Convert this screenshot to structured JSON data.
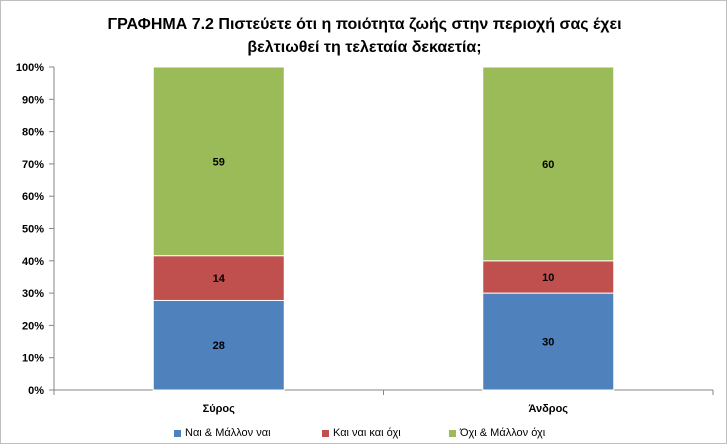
{
  "title_line1": "ΓΡΑΦΗΜΑ 7.2 Πιστεύετε ότι η ποιότητα ζωής στην περιοχή σας έχει",
  "title_line2": "βελτιωθεί τη τελεταία δεκαετία;",
  "chart_data": {
    "type": "bar",
    "stacked": true,
    "percent_stacked": true,
    "title": "ΓΡΑΦΗΜΑ 7.2 Πιστεύετε ότι η ποιότητα ζωής στην περιοχή σας έχει βελτιωθεί τη τελεταία δεκαετία;",
    "categories": [
      "Σύρος",
      "Άνδρος"
    ],
    "series": [
      {
        "name": "Ναι & Μάλλον ναι",
        "values": [
          28,
          30
        ],
        "color": "#4f81bd"
      },
      {
        "name": "Και ναι και όχι",
        "values": [
          14,
          10
        ],
        "color": "#c0504d"
      },
      {
        "name": "Όχι & Μάλλον όχι",
        "values": [
          59,
          60
        ],
        "color": "#9bbb59"
      }
    ],
    "yticks": [
      "0%",
      "10%",
      "20%",
      "30%",
      "40%",
      "50%",
      "60%",
      "70%",
      "80%",
      "90%",
      "100%"
    ],
    "ylim": [
      0,
      100
    ],
    "grid": false,
    "legend": "bottom"
  }
}
